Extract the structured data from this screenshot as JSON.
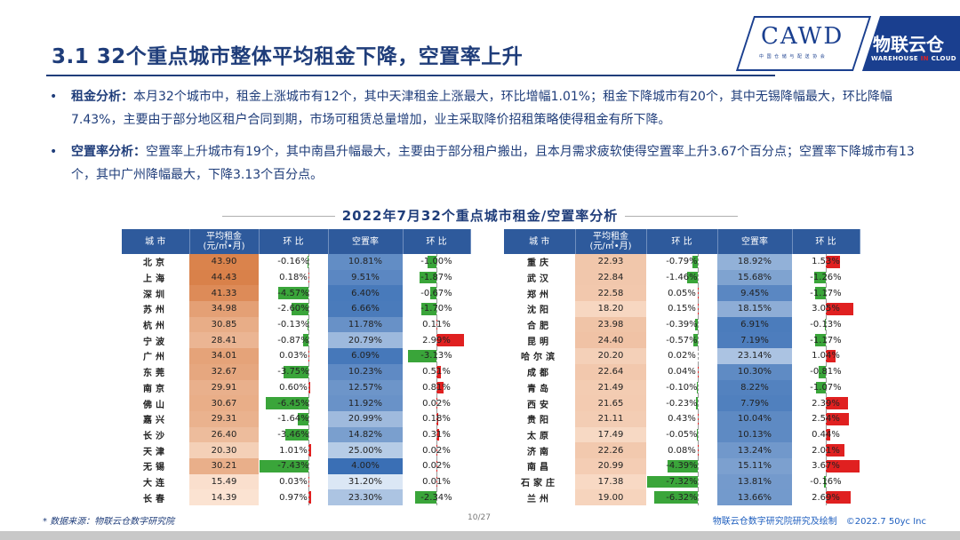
{
  "title": "3.1 32个重点城市整体平均租金下降，空置率上升",
  "logo": {
    "cawd": "CAWD",
    "cawd_sub": "中 国 仓 储 与 配 送 协 会",
    "wl": "物联云仓",
    "wl_sub_a": "WAREHOUSE ",
    "wl_sub_b": "IN",
    "wl_sub_c": " CLOUD"
  },
  "bullets": [
    {
      "key": "租金分析：",
      "text": "本月32个城市中，租金上涨城市有12个，其中天津租金上涨最大，环比增幅1.01%；租金下降城市有20个，其中无锡降幅最大，环比降幅7.43%，主要由于部分地区租户合同到期，市场可租赁总量增加，业主采取降价招租策略使得租金有所下降。"
    },
    {
      "key": "空置率分析：",
      "text": "空置率上升城市有19个，其中南昌升幅最大，主要由于部分租户搬出，且本月需求疲软使得空置率上升3.67个百分点；空置率下降城市有13个，其中广州降幅最大，下降3.13个百分点。"
    }
  ],
  "table_title": "2022年7月32个重点城市租金/空置率分析",
  "headers": {
    "city": "城 市",
    "rent_l1": "平均租金",
    "rent_l2": "(元/㎡•月)",
    "mom": "环 比",
    "vacancy": "空置率",
    "mom2": "环 比"
  },
  "colors": {
    "header_bg": "#2e5a9c",
    "rent_high": "#d9814a",
    "rent_low": "#fbe3d2",
    "vac_high": "#3a6fb5",
    "vac_low": "#dbe7f5",
    "bar_pos": "#e02020",
    "bar_neg": "#3aa53a"
  },
  "left_rows": [
    {
      "city": "北京",
      "rent": "43.90",
      "rent_chg": "-0.16%",
      "vacancy": "10.81%",
      "vac_chg": "-1.00%"
    },
    {
      "city": "上海",
      "rent": "44.43",
      "rent_chg": "0.18%",
      "vacancy": "9.51%",
      "vac_chg": "-1.87%"
    },
    {
      "city": "深圳",
      "rent": "41.33",
      "rent_chg": "-4.57%",
      "vacancy": "6.40%",
      "vac_chg": "-0.67%"
    },
    {
      "city": "苏州",
      "rent": "34.98",
      "rent_chg": "-2.60%",
      "vacancy": "6.66%",
      "vac_chg": "-1.70%"
    },
    {
      "city": "杭州",
      "rent": "30.85",
      "rent_chg": "-0.13%",
      "vacancy": "11.78%",
      "vac_chg": "0.11%"
    },
    {
      "city": "宁波",
      "rent": "28.41",
      "rent_chg": "-0.87%",
      "vacancy": "20.79%",
      "vac_chg": "2.99%"
    },
    {
      "city": "广州",
      "rent": "34.01",
      "rent_chg": "0.03%",
      "vacancy": "6.09%",
      "vac_chg": "-3.13%"
    },
    {
      "city": "东莞",
      "rent": "32.67",
      "rent_chg": "-3.75%",
      "vacancy": "10.23%",
      "vac_chg": "0.51%"
    },
    {
      "city": "南京",
      "rent": "29.91",
      "rent_chg": "0.60%",
      "vacancy": "12.57%",
      "vac_chg": "0.81%"
    },
    {
      "city": "佛山",
      "rent": "30.67",
      "rent_chg": "-6.45%",
      "vacancy": "11.92%",
      "vac_chg": "0.02%"
    },
    {
      "city": "嘉兴",
      "rent": "29.31",
      "rent_chg": "-1.64%",
      "vacancy": "20.99%",
      "vac_chg": "0.18%"
    },
    {
      "city": "长沙",
      "rent": "26.40",
      "rent_chg": "-3.46%",
      "vacancy": "14.82%",
      "vac_chg": "0.31%"
    },
    {
      "city": "天津",
      "rent": "20.30",
      "rent_chg": "1.01%",
      "vacancy": "25.00%",
      "vac_chg": "0.02%"
    },
    {
      "city": "无锡",
      "rent": "30.21",
      "rent_chg": "-7.43%",
      "vacancy": "4.00%",
      "vac_chg": "0.02%"
    },
    {
      "city": "大连",
      "rent": "15.49",
      "rent_chg": "0.03%",
      "vacancy": "31.20%",
      "vac_chg": "0.01%"
    },
    {
      "city": "长春",
      "rent": "14.39",
      "rent_chg": "0.97%",
      "vacancy": "23.30%",
      "vac_chg": "-2.34%"
    }
  ],
  "right_rows": [
    {
      "city": "重庆",
      "rent": "22.93",
      "rent_chg": "-0.79%",
      "vacancy": "18.92%",
      "vac_chg": "1.53%"
    },
    {
      "city": "武汉",
      "rent": "22.84",
      "rent_chg": "-1.46%",
      "vacancy": "15.68%",
      "vac_chg": "-1.26%"
    },
    {
      "city": "郑州",
      "rent": "22.58",
      "rent_chg": "0.05%",
      "vacancy": "9.45%",
      "vac_chg": "-1.17%"
    },
    {
      "city": "沈阳",
      "rent": "18.20",
      "rent_chg": "0.15%",
      "vacancy": "18.15%",
      "vac_chg": "3.05%"
    },
    {
      "city": "合肥",
      "rent": "23.98",
      "rent_chg": "-0.39%",
      "vacancy": "6.91%",
      "vac_chg": "-0.13%"
    },
    {
      "city": "昆明",
      "rent": "24.40",
      "rent_chg": "-0.57%",
      "vacancy": "7.19%",
      "vac_chg": "-1.17%"
    },
    {
      "city": "哈尔滨",
      "rent": "20.20",
      "rent_chg": "0.02%",
      "vacancy": "23.14%",
      "vac_chg": "1.04%"
    },
    {
      "city": "成都",
      "rent": "22.64",
      "rent_chg": "0.04%",
      "vacancy": "10.30%",
      "vac_chg": "-0.81%"
    },
    {
      "city": "青岛",
      "rent": "21.49",
      "rent_chg": "-0.10%",
      "vacancy": "8.22%",
      "vac_chg": "-1.07%"
    },
    {
      "city": "西安",
      "rent": "21.65",
      "rent_chg": "-0.23%",
      "vacancy": "7.79%",
      "vac_chg": "2.39%"
    },
    {
      "city": "贵阳",
      "rent": "21.11",
      "rent_chg": "0.43%",
      "vacancy": "10.04%",
      "vac_chg": "2.54%"
    },
    {
      "city": "太原",
      "rent": "17.49",
      "rent_chg": "-0.05%",
      "vacancy": "10.13%",
      "vac_chg": "0.44%"
    },
    {
      "city": "济南",
      "rent": "22.26",
      "rent_chg": "0.08%",
      "vacancy": "13.24%",
      "vac_chg": "2.01%"
    },
    {
      "city": "南昌",
      "rent": "20.99",
      "rent_chg": "-4.39%",
      "vacancy": "15.11%",
      "vac_chg": "3.67%"
    },
    {
      "city": "石家庄",
      "rent": "17.38",
      "rent_chg": "-7.32%",
      "vacancy": "13.81%",
      "vac_chg": "-0.16%"
    },
    {
      "city": "兰州",
      "rent": "19.00",
      "rent_chg": "-6.32%",
      "vacancy": "13.66%",
      "vac_chg": "2.69%"
    }
  ],
  "footer": {
    "source": "* 数据来源：物联云仓数字研究院",
    "page": "10/27",
    "copyright": "物联云仓数字研究院研究及绘制　©2022.7 50yc Inc"
  }
}
